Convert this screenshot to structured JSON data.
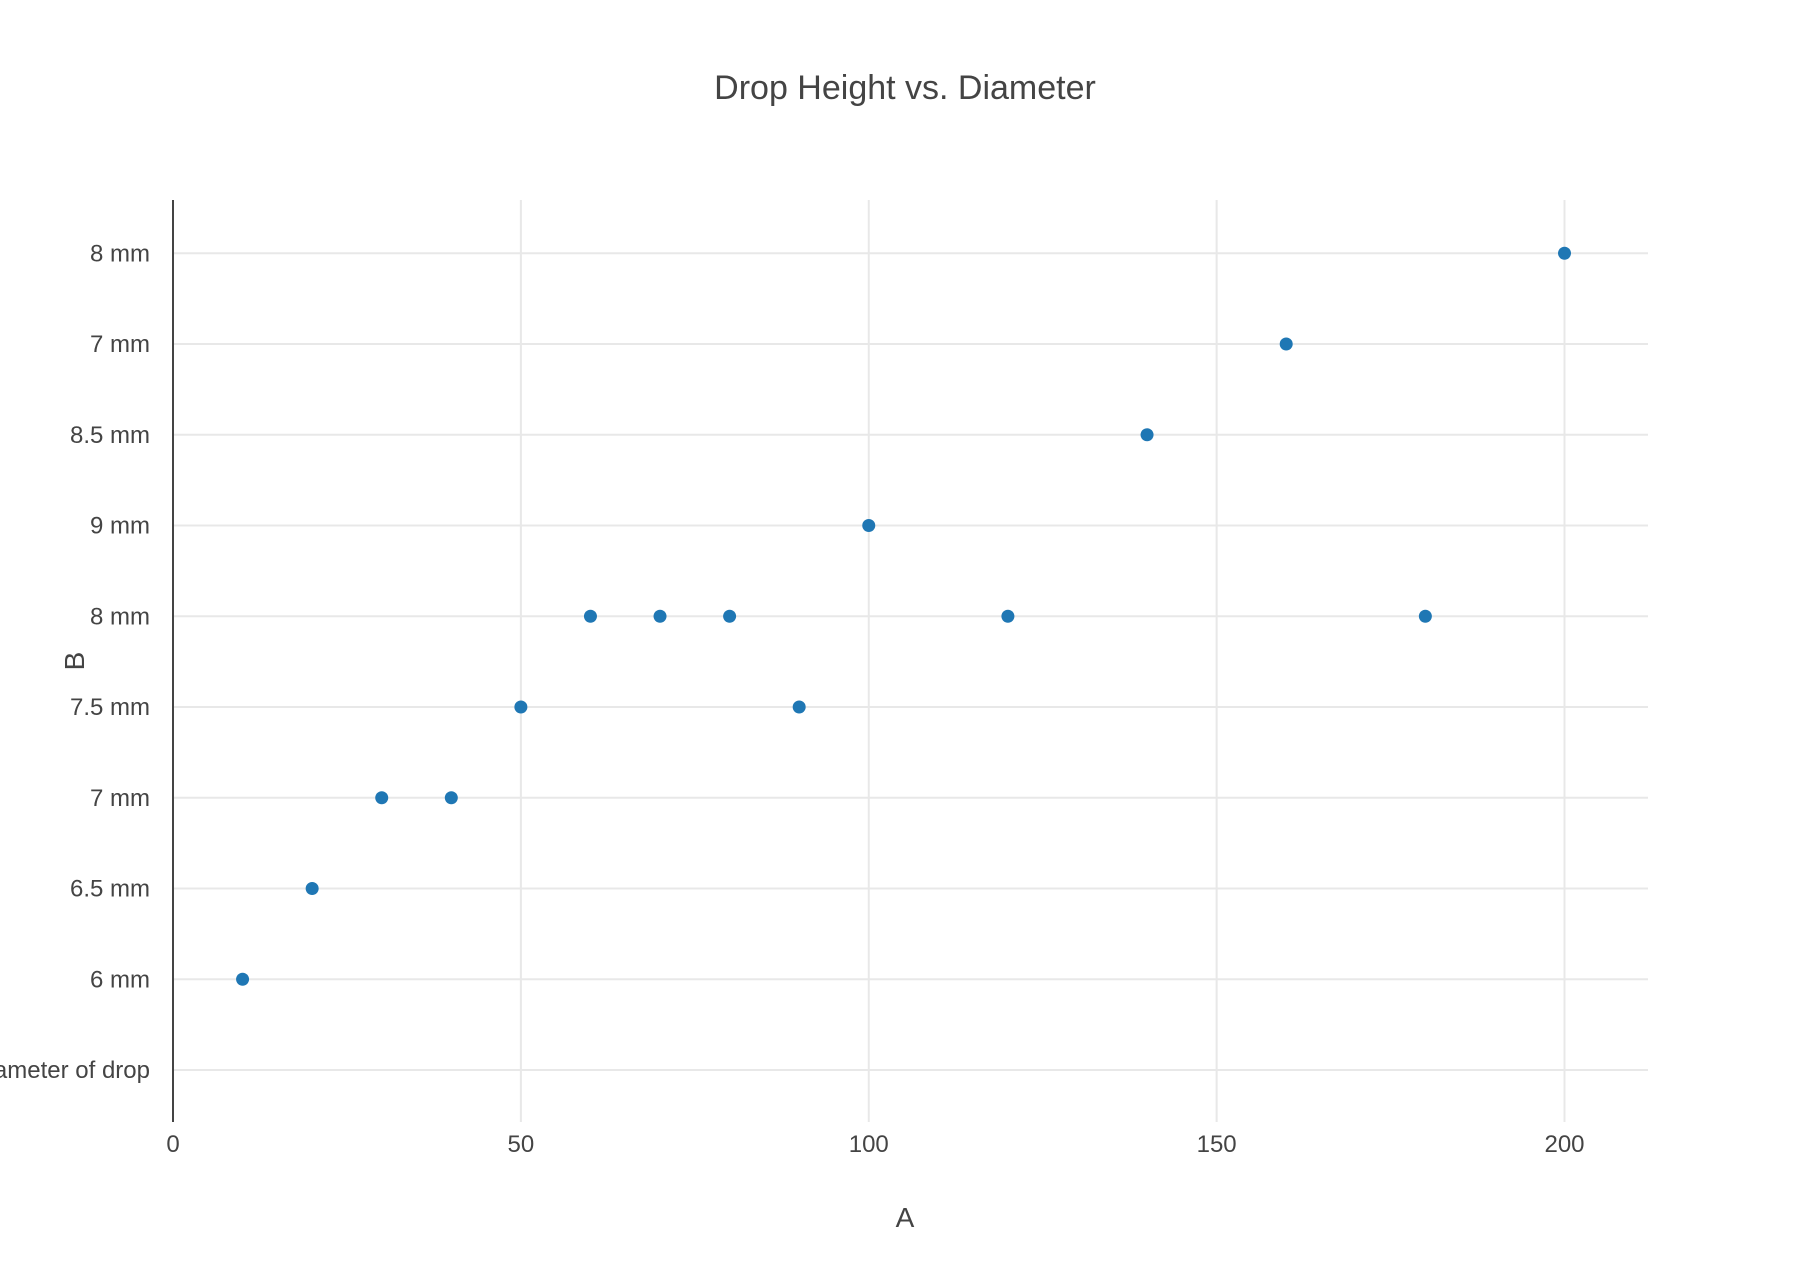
{
  "chart_data": {
    "type": "scatter",
    "title": "Drop Height vs. Diameter",
    "xlabel": "A",
    "ylabel": "B",
    "x_ticks": [
      "0",
      "50",
      "100",
      "150",
      "200"
    ],
    "xlim": [
      0,
      212
    ],
    "y_categories": [
      "Diameter of drop",
      "6 mm",
      "6.5 mm",
      "7 mm",
      "7.5 mm",
      "8 mm",
      "9 mm",
      "8.5 mm",
      "7 mm",
      "8 mm"
    ],
    "grid": true,
    "marker_color": "#1f77b4",
    "series": [
      {
        "x": [
          10,
          20,
          30,
          40,
          50,
          60,
          70,
          80,
          90,
          100,
          120,
          140,
          160,
          180,
          200
        ],
        "y": [
          "6 mm",
          "6.5 mm",
          "7 mm",
          "7 mm",
          "7.5 mm",
          "8 mm",
          "8 mm",
          "8 mm",
          "7.5 mm",
          "9 mm",
          "8 mm",
          "8.5 mm",
          "7 mm",
          "8 mm",
          "8 mm"
        ],
        "y_index": [
          1,
          2,
          3,
          3,
          4,
          5,
          5,
          5,
          4,
          6,
          5,
          7,
          8,
          5,
          9
        ]
      }
    ]
  }
}
